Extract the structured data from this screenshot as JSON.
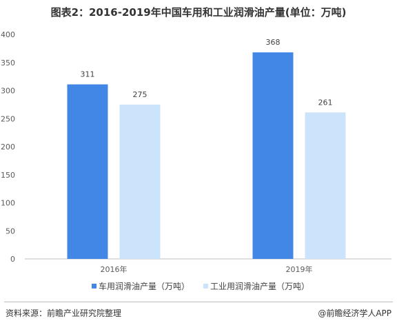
{
  "title": "图表2：2016-2019年中国车用和工业润滑油产量(单位：万吨)",
  "chart_data": {
    "type": "bar",
    "categories": [
      "2016年",
      "2019年"
    ],
    "series": [
      {
        "name": "车用润滑油产量（万吨）",
        "values": [
          311,
          368
        ],
        "color": "#4287e6"
      },
      {
        "name": "工业用润滑油产量（万吨）",
        "values": [
          275,
          261
        ],
        "color": "#cce3fc"
      }
    ],
    "ylim": [
      0,
      400
    ],
    "yticks": [
      0,
      50,
      100,
      150,
      200,
      250,
      300,
      350,
      400
    ],
    "grid": false,
    "legend_position": "bottom"
  },
  "footer": {
    "source": "资料来源：前瞻产业研究院整理",
    "credit": "@前瞻经济学人APP"
  }
}
